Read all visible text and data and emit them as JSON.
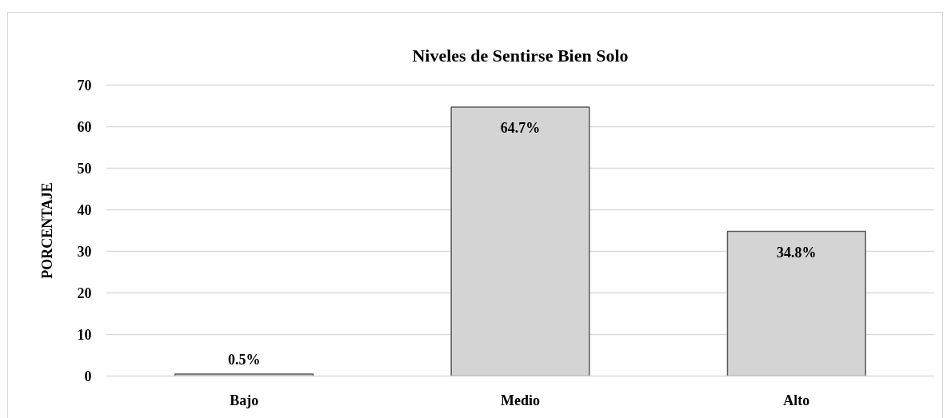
{
  "chart_data": {
    "type": "bar",
    "title": "Niveles de Sentirse Bien Solo",
    "ylabel": "PORCENTAJE",
    "categories": [
      "Bajo",
      "Medio",
      "Alto"
    ],
    "values": [
      0.5,
      64.7,
      34.8
    ],
    "value_labels": [
      "0.5%",
      "64.7%",
      "34.8%"
    ],
    "color": "#d4d4d4",
    "ylim": [
      0,
      70
    ],
    "yticks": [
      0,
      10,
      20,
      30,
      40,
      50,
      60,
      70
    ],
    "grid": "y"
  }
}
